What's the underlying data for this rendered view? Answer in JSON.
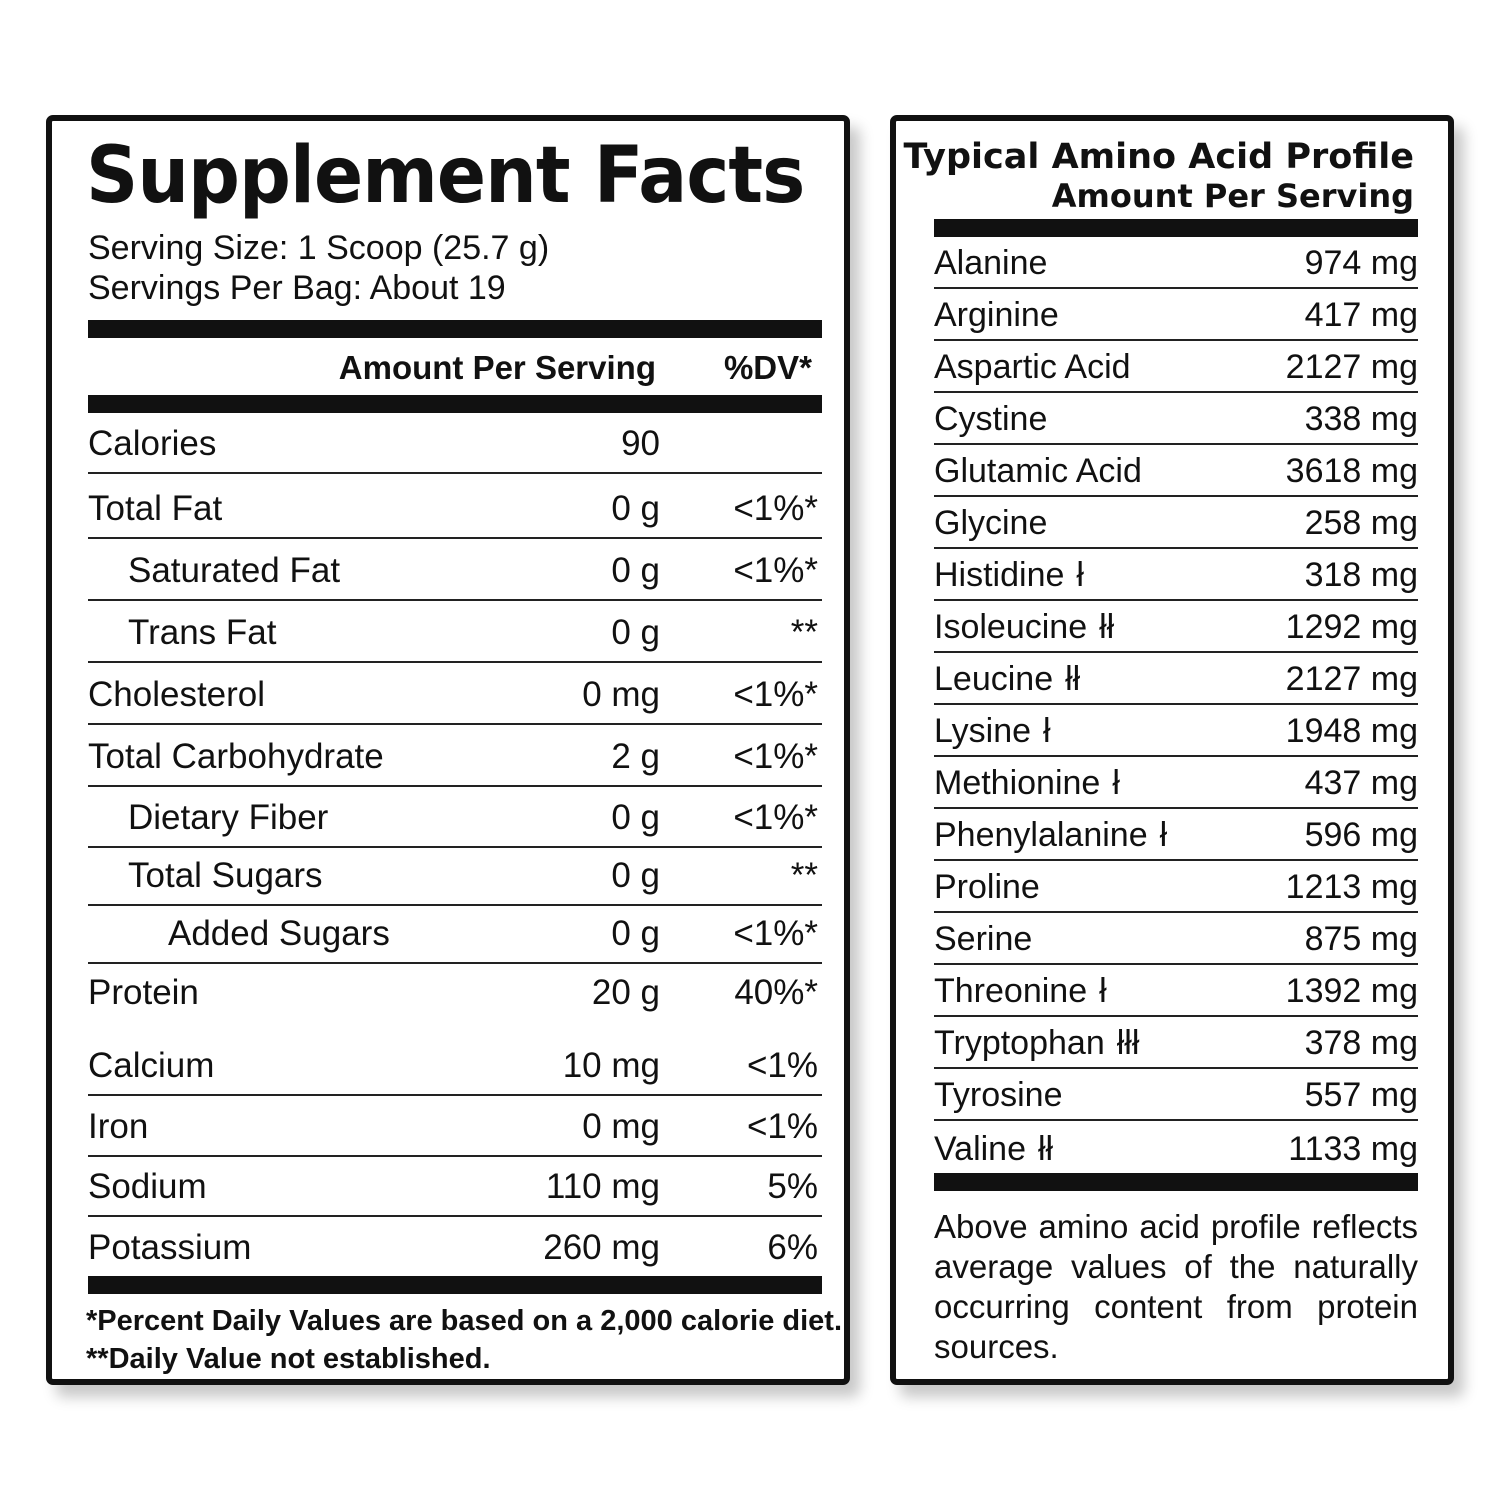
{
  "supplement_facts": {
    "title": "Supplement Facts",
    "serving_size": "Serving Size: 1 Scoop (25.7 g)",
    "servings_per_bag": "Servings Per Bag: About 19",
    "header_amount": "Amount Per Serving",
    "header_dv": "%DV*",
    "rows": [
      {
        "label": "Calories",
        "amount": "90",
        "dv": ""
      },
      {
        "label": "Total Fat",
        "amount": "0 g",
        "dv": "<1%*"
      },
      {
        "label": "Saturated Fat",
        "amount": "0 g",
        "dv": "<1%*"
      },
      {
        "label": "Trans Fat",
        "amount": "0 g",
        "dv": "**"
      },
      {
        "label": "Cholesterol",
        "amount": "0 mg",
        "dv": "<1%*"
      },
      {
        "label": "Total Carbohydrate",
        "amount": "2 g",
        "dv": "<1%*"
      },
      {
        "label": "Dietary Fiber",
        "amount": "0 g",
        "dv": "<1%*"
      },
      {
        "label": "Total Sugars",
        "amount": "0 g",
        "dv": "**"
      },
      {
        "label": "Added Sugars",
        "amount": "0 g",
        "dv": "<1%*"
      },
      {
        "label": "Protein",
        "amount": "20 g",
        "dv": "40%*"
      },
      {
        "label": "Calcium",
        "amount": "10 mg",
        "dv": "<1%"
      },
      {
        "label": "Iron",
        "amount": "0 mg",
        "dv": "<1%"
      },
      {
        "label": "Sodium",
        "amount": "110 mg",
        "dv": "5%"
      },
      {
        "label": "Potassium",
        "amount": "260 mg",
        "dv": "6%"
      }
    ],
    "footnote_1": "*Percent Daily Values are based on a 2,000 calorie diet.",
    "footnote_2": "**Daily Value not established."
  },
  "amino_profile": {
    "title": "Typical Amino Acid Profile",
    "subtitle": "Amount Per Serving",
    "rows": [
      {
        "name": "Alanine",
        "mark": "",
        "value": "974 mg"
      },
      {
        "name": "Arginine",
        "mark": "",
        "value": "417 mg"
      },
      {
        "name": "Aspartic Acid",
        "mark": "",
        "value": "2127 mg"
      },
      {
        "name": "Cystine",
        "mark": "",
        "value": "338 mg"
      },
      {
        "name": "Glutamic Acid",
        "mark": "",
        "value": "3618 mg"
      },
      {
        "name": "Glycine",
        "mark": "",
        "value": "258 mg"
      },
      {
        "name": "Histidine",
        "mark": "ł",
        "value": "318 mg"
      },
      {
        "name": "Isoleucine",
        "mark": "łł",
        "value": "1292 mg"
      },
      {
        "name": "Leucine",
        "mark": "łł",
        "value": "2127 mg"
      },
      {
        "name": "Lysine",
        "mark": "ł",
        "value": "1948 mg"
      },
      {
        "name": "Methionine",
        "mark": "ł",
        "value": "437 mg"
      },
      {
        "name": "Phenylalanine",
        "mark": "ł",
        "value": "596 mg"
      },
      {
        "name": "Proline",
        "mark": "",
        "value": "1213 mg"
      },
      {
        "name": "Serine",
        "mark": "",
        "value": "875 mg"
      },
      {
        "name": "Threonine",
        "mark": "ł",
        "value": "1392 mg"
      },
      {
        "name": "Tryptophan",
        "mark": "łłł",
        "value": "378 mg"
      },
      {
        "name": "Tyrosine",
        "mark": "",
        "value": "557 mg"
      },
      {
        "name": "Valine",
        "mark": "łł",
        "value": "1133 mg"
      }
    ],
    "note": "Above amino acid profile reflects average values of the naturally occurring content from protein sources."
  }
}
